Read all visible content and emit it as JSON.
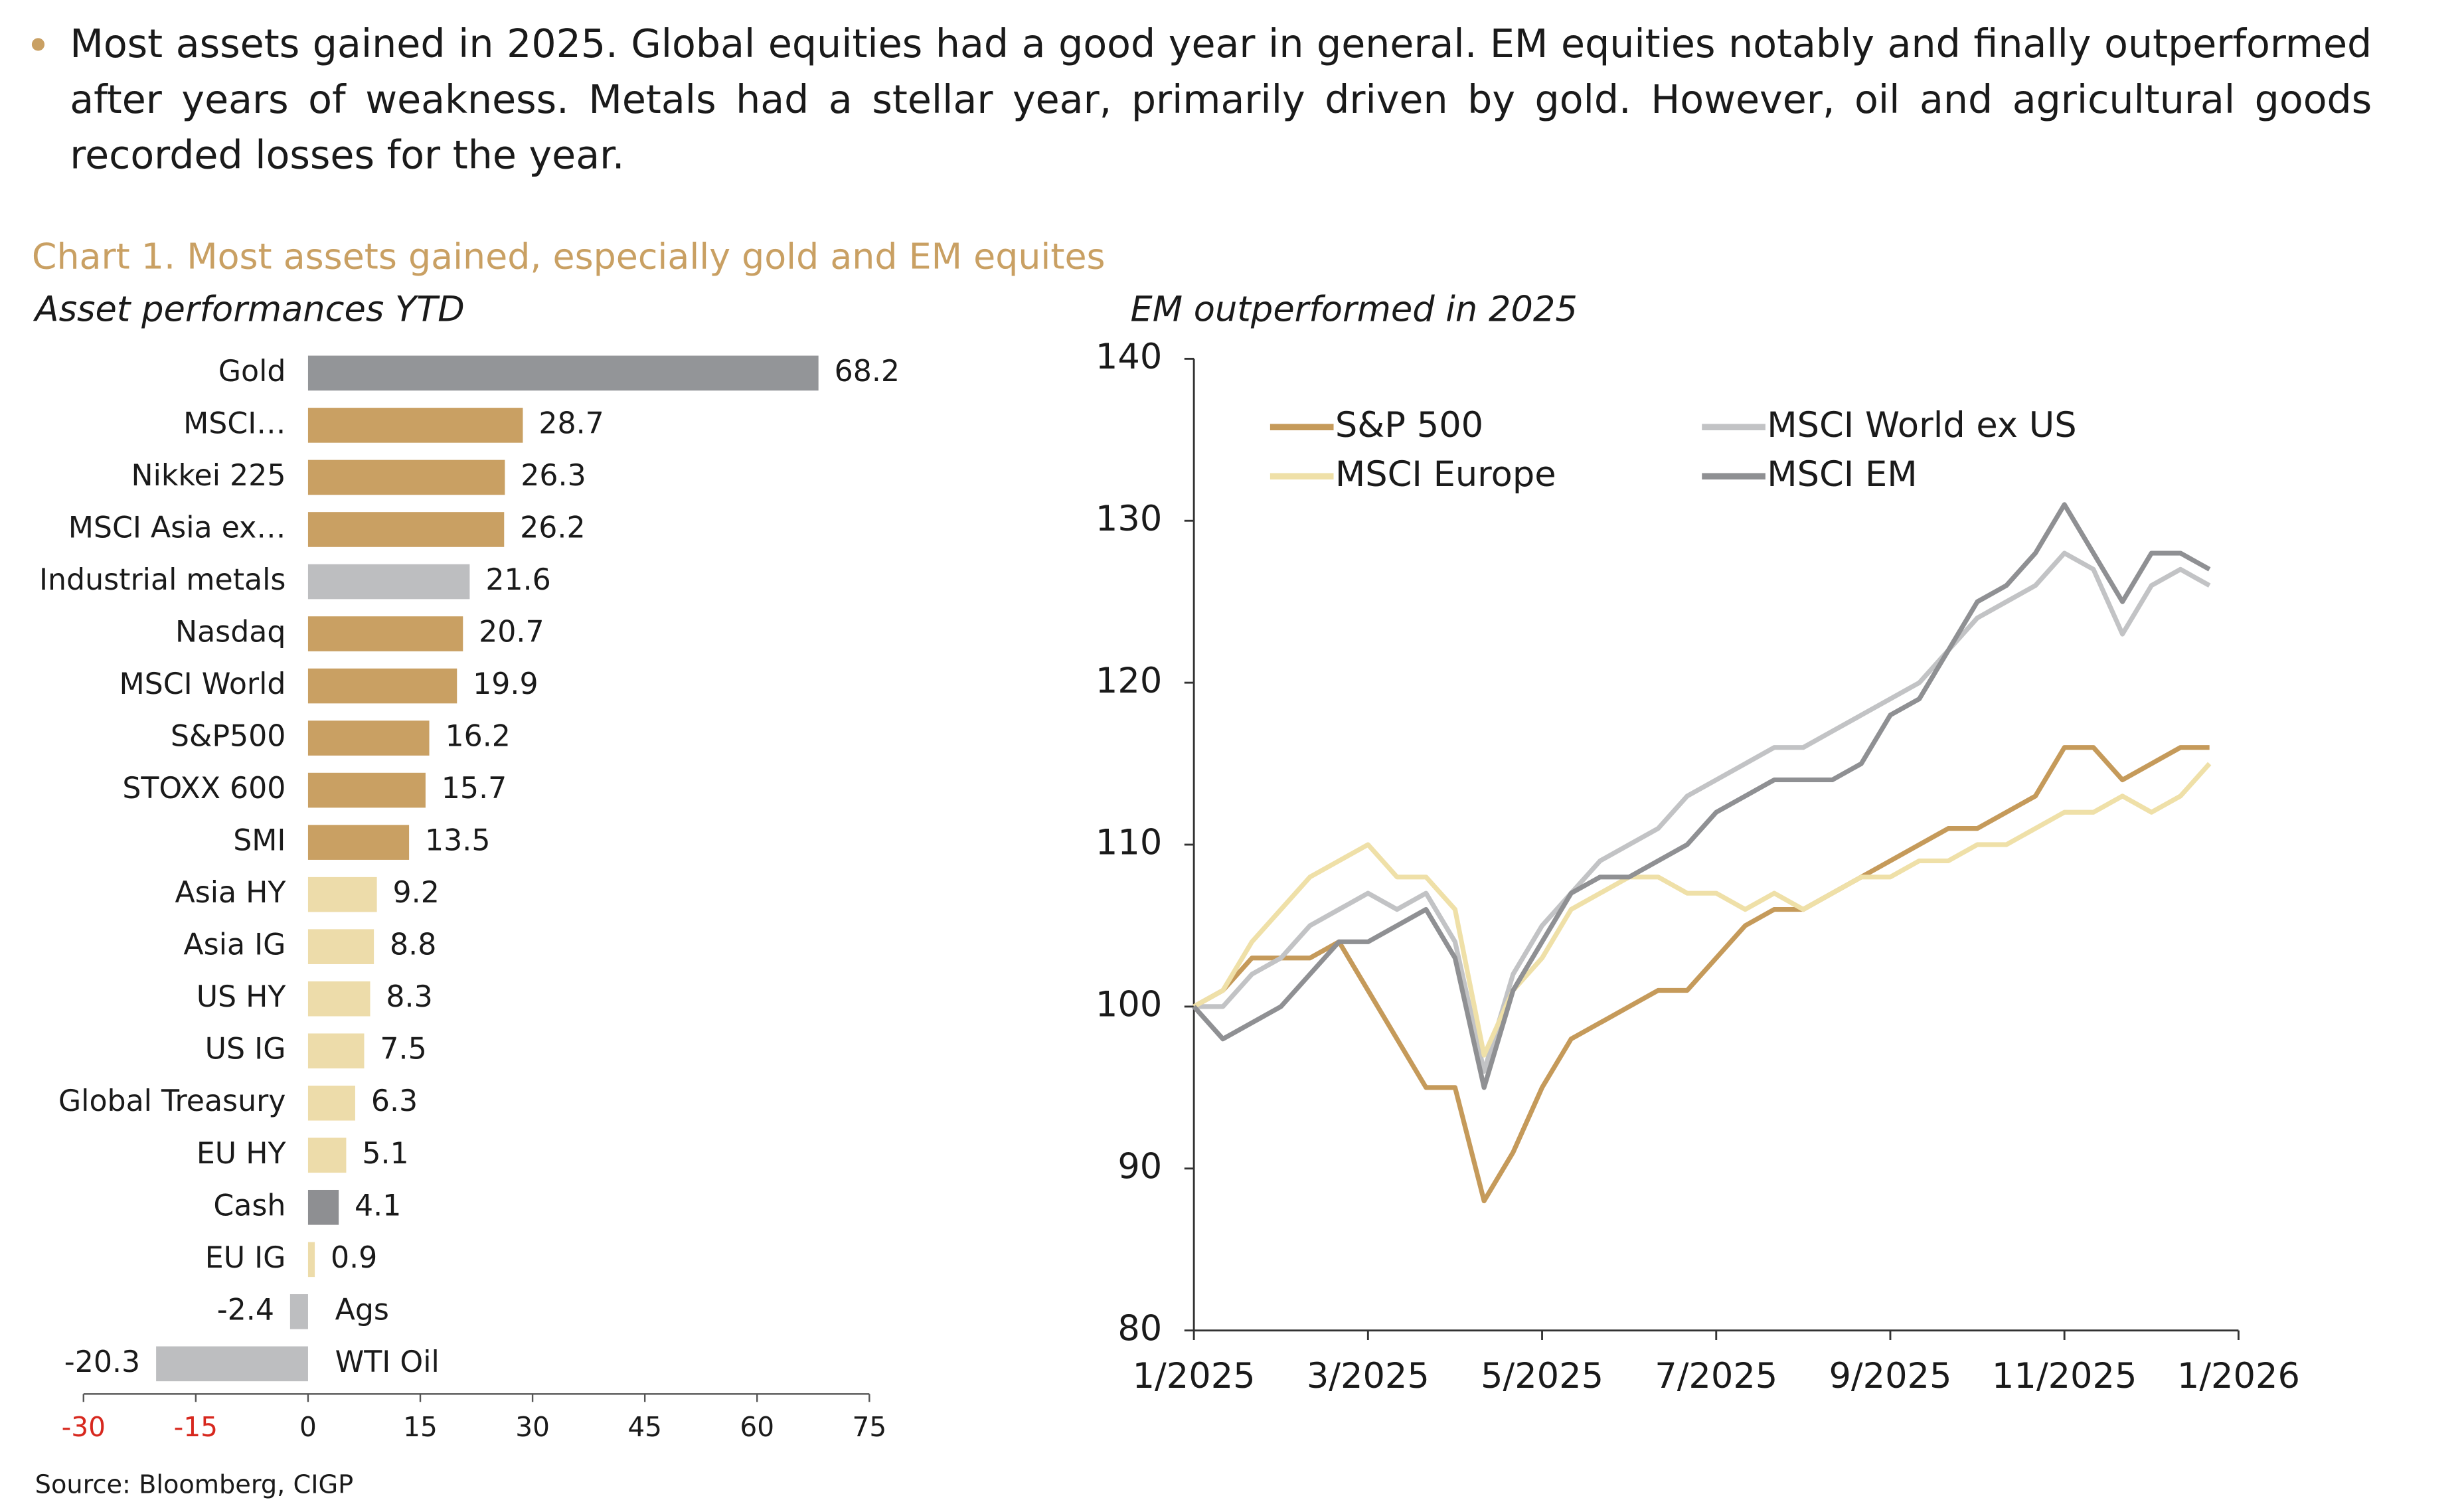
{
  "paragraph": "Most assets gained in 2025. Global equities had a good year in general. EM equities notably and finally outperformed after years of weakness. Metals had a stellar year, primarily driven by gold. However, oil and agricultural goods recorded losses for the year.",
  "heading": "Chart 1. Most assets gained, especially gold and EM equites",
  "source": "Source: Bloomberg, CIGP",
  "chart_data": [
    {
      "type": "bar",
      "orientation": "horizontal",
      "title": "Asset performances YTD",
      "categories": [
        "Gold",
        "MSCI…",
        "Nikkei 225",
        "MSCI Asia ex…",
        "Industrial metals",
        "Nasdaq",
        "MSCI World",
        "S&P500",
        "STOXX 600",
        "SMI",
        "Asia HY",
        "Asia IG",
        "US HY",
        "US IG",
        "Global Treasury",
        "EU HY",
        "Cash",
        "EU IG",
        "Ags",
        "WTI Oil"
      ],
      "values": [
        68.2,
        28.7,
        26.3,
        26.2,
        21.6,
        20.7,
        19.9,
        16.2,
        15.7,
        13.5,
        9.2,
        8.8,
        8.3,
        7.5,
        6.3,
        5.1,
        4.1,
        0.9,
        -2.4,
        -20.3
      ],
      "colors": [
        "#939598",
        "#c9a063",
        "#c9a063",
        "#c9a063",
        "#bdbec0",
        "#c9a063",
        "#c9a063",
        "#c9a063",
        "#c9a063",
        "#c9a063",
        "#eddcaa",
        "#eddcaa",
        "#eddcaa",
        "#eddcaa",
        "#eddcaa",
        "#eddcaa",
        "#8e8f92",
        "#eddcaa",
        "#bdbec0",
        "#bdbec0"
      ],
      "xlim": [
        -30,
        75
      ],
      "xticks": [
        -30,
        -15,
        0,
        15,
        30,
        45,
        60,
        75
      ],
      "negative_tick_color": "#d7281e"
    },
    {
      "type": "line",
      "title": "EM outperformed in 2025",
      "categories": [
        "1/2025",
        null,
        null,
        null,
        null,
        null,
        "3/2025",
        null,
        null,
        null,
        null,
        null,
        "5/2025",
        null,
        null,
        null,
        null,
        null,
        "7/2025",
        null,
        null,
        null,
        null,
        null,
        "9/2025",
        null,
        null,
        null,
        null,
        null,
        "11/2025",
        null,
        null,
        null,
        null,
        null,
        "1/2026"
      ],
      "series": [
        {
          "name": "S&P 500",
          "color": "#c59a5a",
          "values": [
            100,
            101,
            103,
            103,
            103,
            104,
            101,
            98,
            95,
            95,
            88,
            91,
            95,
            98,
            99,
            100,
            101,
            101,
            103,
            105,
            106,
            106,
            107,
            108,
            109,
            110,
            111,
            111,
            112,
            113,
            116,
            116,
            114,
            115,
            116,
            116,
            null
          ]
        },
        {
          "name": "MSCI World ex US",
          "color": "#c2c3c5",
          "values": [
            100,
            100,
            102,
            103,
            105,
            106,
            107,
            106,
            107,
            104,
            96,
            102,
            105,
            107,
            109,
            110,
            111,
            113,
            114,
            115,
            116,
            116,
            117,
            118,
            119,
            120,
            122,
            124,
            125,
            126,
            128,
            127,
            123,
            126,
            127,
            126,
            null
          ]
        },
        {
          "name": "MSCI Europe",
          "color": "#efe0a8",
          "values": [
            100,
            101,
            104,
            106,
            108,
            109,
            110,
            108,
            108,
            106,
            97,
            101,
            103,
            106,
            107,
            108,
            108,
            107,
            107,
            106,
            107,
            106,
            107,
            108,
            108,
            109,
            109,
            110,
            110,
            111,
            112,
            112,
            113,
            112,
            113,
            115,
            null
          ]
        },
        {
          "name": "MSCI EM",
          "color": "#8f9093",
          "values": [
            100,
            98,
            99,
            100,
            102,
            104,
            104,
            105,
            106,
            103,
            95,
            101,
            104,
            107,
            108,
            108,
            109,
            110,
            112,
            113,
            114,
            114,
            114,
            115,
            118,
            119,
            122,
            125,
            126,
            128,
            131,
            128,
            125,
            128,
            128,
            127,
            null
          ]
        }
      ],
      "ylim": [
        80,
        140
      ],
      "yticks": [
        80,
        90,
        100,
        110,
        120,
        130,
        140
      ],
      "legend": "upper left"
    }
  ]
}
